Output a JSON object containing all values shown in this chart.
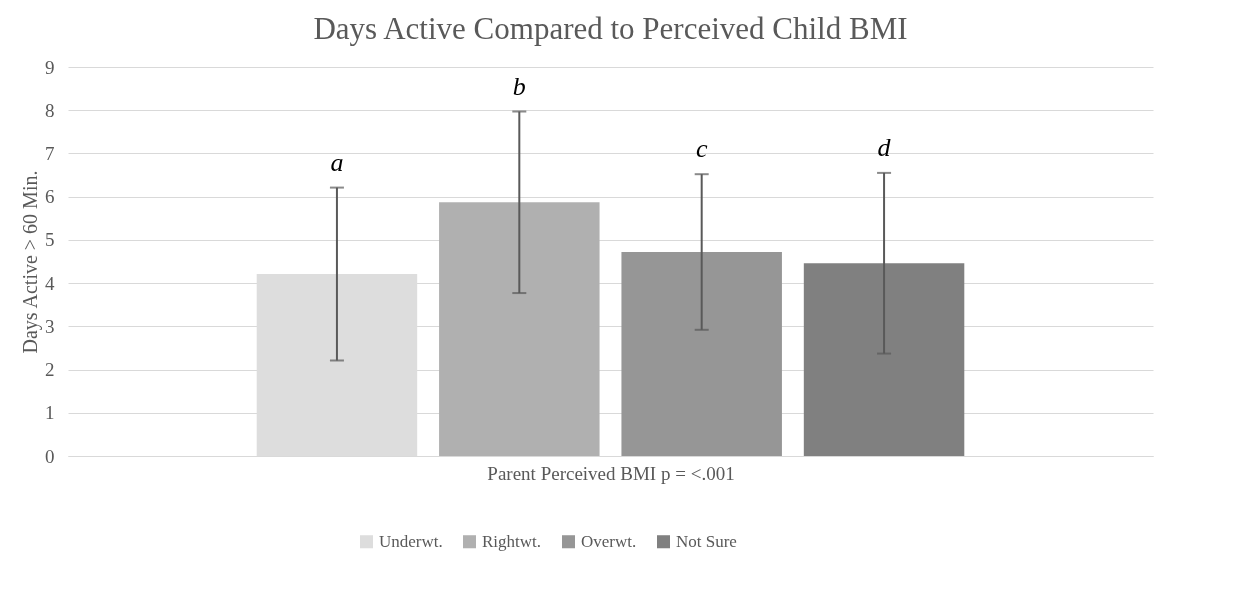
{
  "chart_data": {
    "type": "bar",
    "title": "Days Active Compared to Perceived Child BMI",
    "xlabel": "Parent Perceived BMI p = <.001",
    "ylabel": "Days Active > 60 Min.",
    "categories": [
      null
    ],
    "series": [
      {
        "name": "Underwt.",
        "color": "#dddddd",
        "values": [
          4.21
        ],
        "errors": [
          2.0
        ]
      },
      {
        "name": "Rightwt.",
        "color": "#b0b0b0",
        "values": [
          5.87
        ],
        "errors": [
          2.1
        ]
      },
      {
        "name": "Overwt.",
        "color": "#969696",
        "values": [
          4.72
        ],
        "errors": [
          1.8
        ]
      },
      {
        "name": "Not Sure",
        "color": "#808080",
        "values": [
          4.46
        ],
        "errors": [
          2.09
        ]
      }
    ],
    "annotations": [
      "a",
      "b",
      "c",
      "d"
    ],
    "ylim": [
      0,
      9
    ],
    "yticks": [
      0,
      1,
      2,
      3,
      4,
      5,
      6,
      7,
      8,
      9
    ],
    "grid": "y",
    "legend": "bottom",
    "tick_labels": "y"
  }
}
